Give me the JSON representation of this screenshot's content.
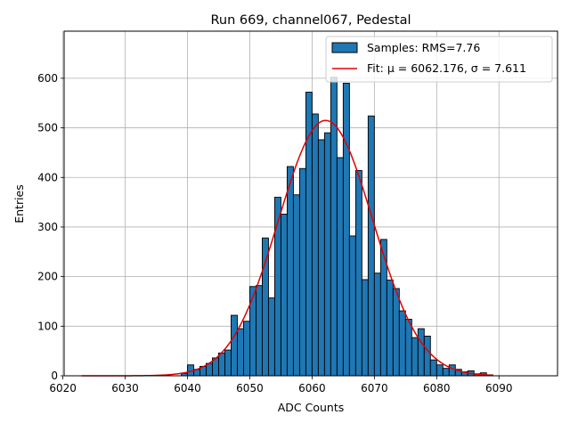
{
  "chart_data": {
    "type": "bar",
    "title": "Run 669, channel067, Pedestal",
    "xlabel": "ADC Counts",
    "ylabel": "Entries",
    "xlim": [
      6020.2,
      6099.4
    ],
    "ylim": [
      0,
      695
    ],
    "xticks": [
      6020,
      6030,
      6040,
      6050,
      6060,
      6070,
      6080,
      6090
    ],
    "yticks": [
      0,
      100,
      200,
      300,
      400,
      500,
      600
    ],
    "grid": true,
    "legend_position": "top-right",
    "bin_width": 1,
    "histogram": {
      "name": "Samples: RMS=7.76",
      "color": "#1f77b4",
      "edgecolor": "#000000",
      "bin_starts": [
        6039,
        6040,
        6041,
        6042,
        6043,
        6044,
        6045,
        6046,
        6047,
        6048,
        6049,
        6050,
        6051,
        6052,
        6053,
        6054,
        6055,
        6056,
        6057,
        6058,
        6059,
        6060,
        6061,
        6062,
        6063,
        6064,
        6065,
        6066,
        6067,
        6068,
        6069,
        6070,
        6071,
        6072,
        6073,
        6074,
        6075,
        6076,
        6077,
        6078,
        6079,
        6080,
        6081,
        6082,
        6083,
        6084,
        6085,
        6086,
        6087,
        6088
      ],
      "values": [
        5,
        22,
        13,
        19,
        25,
        36,
        46,
        52,
        122,
        95,
        110,
        180,
        182,
        278,
        157,
        360,
        326,
        422,
        365,
        418,
        572,
        528,
        476,
        490,
        602,
        440,
        590,
        282,
        414,
        194,
        524,
        207,
        275,
        193,
        176,
        131,
        114,
        77,
        95,
        80,
        32,
        22,
        15,
        22,
        13,
        8,
        10,
        4,
        6,
        2
      ]
    },
    "fit": {
      "name": "Fit: μ = 6062.176, σ = 7.611",
      "color": "#e00000",
      "mu": 6062.176,
      "sigma": 7.611,
      "amplitude": 515,
      "x_range": [
        6023,
        6089
      ]
    }
  }
}
